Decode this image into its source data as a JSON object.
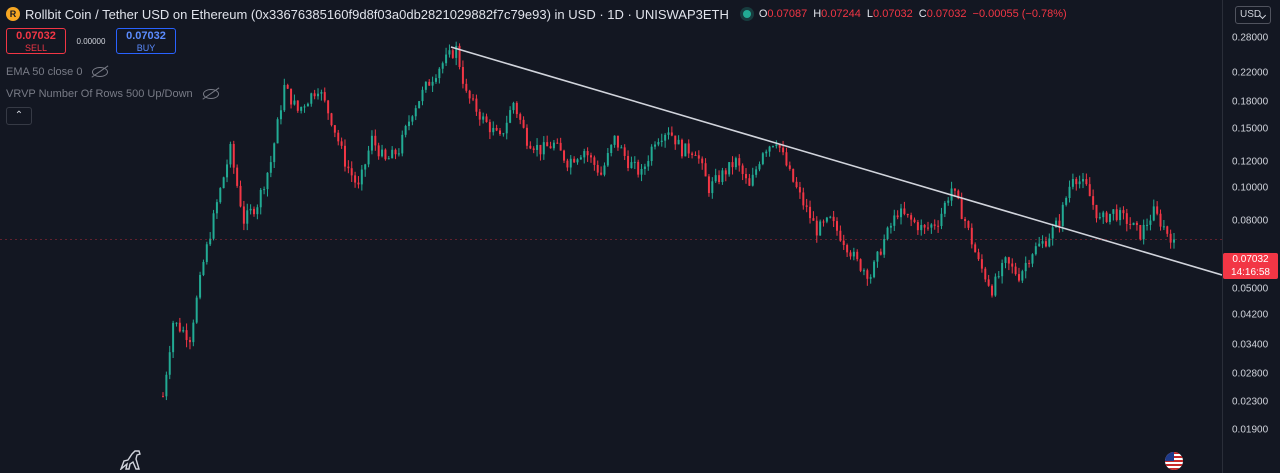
{
  "header": {
    "logo_letter": "R",
    "title": "Rollbit Coin / Tether USD on Ethereum (0x33676385160f9d8f03a0db2821029882f7c79e93) in USD · 1D · UNISWAP3ETH",
    "ohlc": {
      "o_label": "O",
      "o_value": "0.07087",
      "h_label": "H",
      "h_value": "0.07244",
      "l_label": "L",
      "l_value": "0.07032",
      "c_label": "C",
      "c_value": "0.07032",
      "change": "−0.00055 (−0.78%)"
    }
  },
  "trade": {
    "sell_price": "0.07032",
    "sell_label": "SELL",
    "spread": "0.00000",
    "buy_price": "0.07032",
    "buy_label": "BUY"
  },
  "indicators": [
    {
      "label": "EMA 50 close 0"
    },
    {
      "label": "VRVP Number Of Rows 500 Up/Down"
    }
  ],
  "axis": {
    "currency": "USD",
    "ticks": [
      "0.28000",
      "0.22000",
      "0.18000",
      "0.15000",
      "0.12000",
      "0.10000",
      "0.08000",
      "0.05000",
      "0.04200",
      "0.03400",
      "0.02800",
      "0.02300",
      "0.01900"
    ],
    "price_label": "0.07032",
    "countdown": "14:16:58"
  },
  "colors": {
    "background": "#131722",
    "up": "#22ab94",
    "down": "#f23645",
    "trendline": "#d1d4dc"
  },
  "icons": {
    "coin": "rollbit-logo-icon",
    "eye": "eye-hidden-icon",
    "collapse": "chevron-up-icon",
    "dino": "tradingview-dino-icon",
    "flag": "us-flag-icon"
  },
  "chart_data": {
    "type": "candlestick",
    "scale": "log",
    "ylim": [
      0.019,
      0.29
    ],
    "last_close": 0.07032,
    "path_points": [
      [
        0,
        0.024
      ],
      [
        3,
        0.04
      ],
      [
        8,
        0.036
      ],
      [
        12,
        0.06
      ],
      [
        16,
        0.09
      ],
      [
        20,
        0.13
      ],
      [
        24,
        0.08
      ],
      [
        28,
        0.09
      ],
      [
        32,
        0.12
      ],
      [
        36,
        0.2
      ],
      [
        40,
        0.17
      ],
      [
        46,
        0.2
      ],
      [
        50,
        0.16
      ],
      [
        54,
        0.12
      ],
      [
        58,
        0.1
      ],
      [
        62,
        0.14
      ],
      [
        66,
        0.12
      ],
      [
        70,
        0.13
      ],
      [
        74,
        0.17
      ],
      [
        78,
        0.2
      ],
      [
        82,
        0.23
      ],
      [
        87,
        0.26
      ],
      [
        90,
        0.19
      ],
      [
        95,
        0.16
      ],
      [
        100,
        0.14
      ],
      [
        104,
        0.18
      ],
      [
        108,
        0.14
      ],
      [
        112,
        0.13
      ],
      [
        116,
        0.135
      ],
      [
        120,
        0.12
      ],
      [
        125,
        0.13
      ],
      [
        130,
        0.11
      ],
      [
        134,
        0.14
      ],
      [
        138,
        0.12
      ],
      [
        142,
        0.11
      ],
      [
        146,
        0.14
      ],
      [
        150,
        0.15
      ],
      [
        154,
        0.13
      ],
      [
        158,
        0.13
      ],
      [
        162,
        0.1
      ],
      [
        166,
        0.11
      ],
      [
        170,
        0.12
      ],
      [
        174,
        0.1
      ],
      [
        178,
        0.13
      ],
      [
        182,
        0.14
      ],
      [
        186,
        0.11
      ],
      [
        190,
        0.09
      ],
      [
        194,
        0.075
      ],
      [
        198,
        0.08
      ],
      [
        202,
        0.07
      ],
      [
        206,
        0.06
      ],
      [
        210,
        0.055
      ],
      [
        214,
        0.07
      ],
      [
        218,
        0.085
      ],
      [
        222,
        0.08
      ],
      [
        226,
        0.075
      ],
      [
        230,
        0.08
      ],
      [
        234,
        0.1
      ],
      [
        238,
        0.08
      ],
      [
        242,
        0.06
      ],
      [
        246,
        0.05
      ],
      [
        250,
        0.06
      ],
      [
        254,
        0.055
      ],
      [
        258,
        0.065
      ],
      [
        262,
        0.07
      ],
      [
        266,
        0.08
      ],
      [
        270,
        0.11
      ],
      [
        274,
        0.1
      ],
      [
        278,
        0.08
      ],
      [
        282,
        0.085
      ],
      [
        286,
        0.08
      ],
      [
        290,
        0.073
      ],
      [
        294,
        0.085
      ],
      [
        298,
        0.074
      ],
      [
        300,
        0.07
      ]
    ]
  }
}
